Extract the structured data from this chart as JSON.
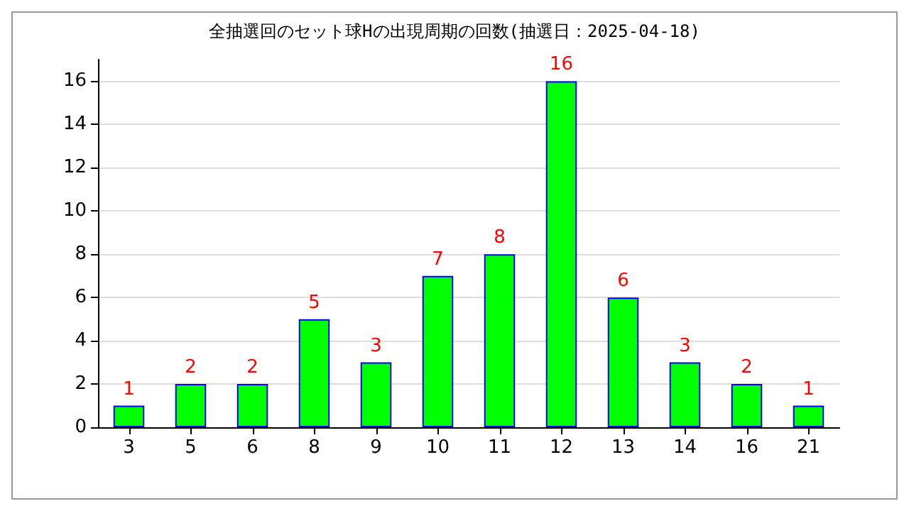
{
  "chart_data": {
    "type": "bar",
    "title": "全抽選回のセット球Hの出現周期の回数(抽選日：2025-04-18)",
    "categories": [
      "3",
      "5",
      "6",
      "8",
      "9",
      "10",
      "11",
      "12",
      "13",
      "14",
      "16",
      "21"
    ],
    "values": [
      1,
      2,
      2,
      5,
      3,
      7,
      8,
      16,
      6,
      3,
      2,
      1
    ],
    "color": "#00ff00",
    "ylim": [
      0,
      17
    ],
    "yticks": [
      0,
      2,
      4,
      6,
      8,
      10,
      12,
      14,
      16
    ],
    "grid": "y",
    "data_labels": true
  }
}
